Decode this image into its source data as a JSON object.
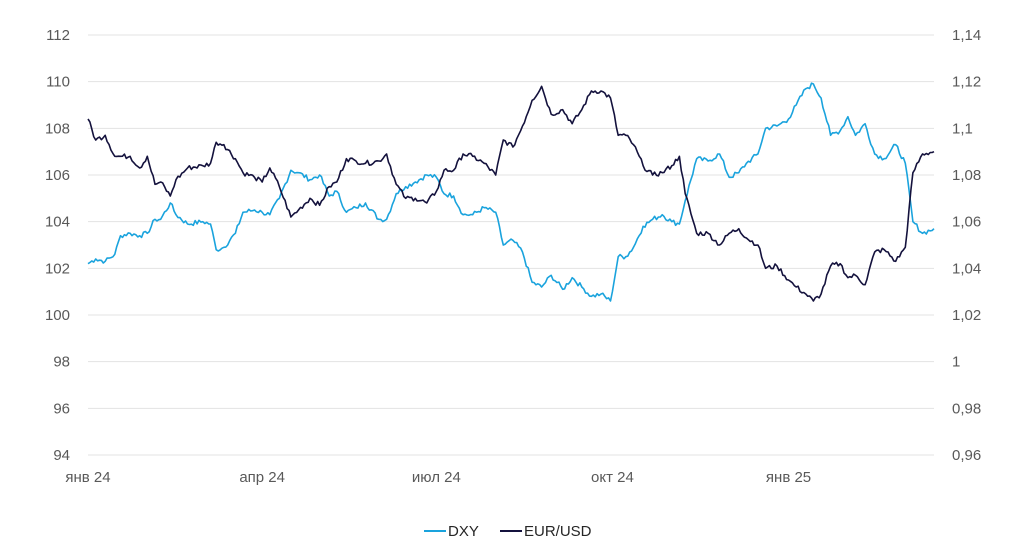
{
  "chart_data": {
    "type": "line",
    "x_tick_labels": [
      "янв 24",
      "апр 24",
      "июл 24",
      "окт 24",
      "янв 25"
    ],
    "x_tick_dates": [
      "2024-01-01",
      "2024-04-01",
      "2024-07-01",
      "2024-10-01",
      "2025-01-01"
    ],
    "x_range": [
      "2024-01-01",
      "2025-03-18"
    ],
    "y_left": {
      "ticks": [
        "112",
        "110",
        "108",
        "106",
        "104",
        "102",
        "100",
        "98",
        "96",
        "94"
      ],
      "range": [
        94,
        112
      ],
      "series": "DXY"
    },
    "y_right": {
      "ticks": [
        "1,14",
        "1,12",
        "1,1",
        "1,08",
        "1,06",
        "1,04",
        "1,02",
        "1",
        "0,98",
        "0,96"
      ],
      "range": [
        0.96,
        1.14
      ],
      "series": "EUR/USD"
    },
    "grid": "horizontal",
    "legend_position": "bottom",
    "series": [
      {
        "name": "DXY",
        "axis": "left",
        "color": "#1aa3dd",
        "points": [
          [
            "2024-01-01",
            102.2
          ],
          [
            "2024-01-05",
            102.4
          ],
          [
            "2024-01-10",
            102.3
          ],
          [
            "2024-01-15",
            102.6
          ],
          [
            "2024-01-18",
            103.4
          ],
          [
            "2024-01-23",
            103.5
          ],
          [
            "2024-01-28",
            103.4
          ],
          [
            "2024-02-01",
            103.5
          ],
          [
            "2024-02-05",
            104.1
          ],
          [
            "2024-02-08",
            104.1
          ],
          [
            "2024-02-13",
            104.8
          ],
          [
            "2024-02-16",
            104.3
          ],
          [
            "2024-02-22",
            103.9
          ],
          [
            "2024-03-01",
            104.0
          ],
          [
            "2024-03-05",
            103.9
          ],
          [
            "2024-03-08",
            102.8
          ],
          [
            "2024-03-12",
            102.9
          ],
          [
            "2024-03-18",
            103.5
          ],
          [
            "2024-03-22",
            104.4
          ],
          [
            "2024-03-28",
            104.5
          ],
          [
            "2024-04-01",
            104.4
          ],
          [
            "2024-04-05",
            104.3
          ],
          [
            "2024-04-10",
            105.0
          ],
          [
            "2024-04-16",
            106.2
          ],
          [
            "2024-04-20",
            106.1
          ],
          [
            "2024-04-26",
            105.8
          ],
          [
            "2024-05-01",
            106.0
          ],
          [
            "2024-05-06",
            105.1
          ],
          [
            "2024-05-10",
            105.3
          ],
          [
            "2024-05-15",
            104.4
          ],
          [
            "2024-05-20",
            104.6
          ],
          [
            "2024-05-25",
            104.8
          ],
          [
            "2024-06-01",
            104.1
          ],
          [
            "2024-06-05",
            104.1
          ],
          [
            "2024-06-10",
            105.2
          ],
          [
            "2024-06-15",
            105.5
          ],
          [
            "2024-06-20",
            105.7
          ],
          [
            "2024-06-26",
            106.0
          ],
          [
            "2024-07-01",
            105.9
          ],
          [
            "2024-07-05",
            105.2
          ],
          [
            "2024-07-10",
            105.1
          ],
          [
            "2024-07-15",
            104.3
          ],
          [
            "2024-07-20",
            104.3
          ],
          [
            "2024-07-26",
            104.6
          ],
          [
            "2024-08-01",
            104.4
          ],
          [
            "2024-08-05",
            103.0
          ],
          [
            "2024-08-10",
            103.2
          ],
          [
            "2024-08-15",
            102.7
          ],
          [
            "2024-08-20",
            101.4
          ],
          [
            "2024-08-25",
            101.2
          ],
          [
            "2024-08-30",
            101.7
          ],
          [
            "2024-09-05",
            101.1
          ],
          [
            "2024-09-10",
            101.6
          ],
          [
            "2024-09-15",
            101.2
          ],
          [
            "2024-09-20",
            100.8
          ],
          [
            "2024-09-25",
            100.9
          ],
          [
            "2024-09-30",
            100.6
          ],
          [
            "2024-10-04",
            102.5
          ],
          [
            "2024-10-08",
            102.5
          ],
          [
            "2024-10-12",
            102.9
          ],
          [
            "2024-10-17",
            103.8
          ],
          [
            "2024-10-22",
            104.1
          ],
          [
            "2024-10-27",
            104.3
          ],
          [
            "2024-11-01",
            104.0
          ],
          [
            "2024-11-05",
            103.9
          ],
          [
            "2024-11-08",
            104.9
          ],
          [
            "2024-11-14",
            106.7
          ],
          [
            "2024-11-20",
            106.6
          ],
          [
            "2024-11-26",
            106.9
          ],
          [
            "2024-12-01",
            105.9
          ],
          [
            "2024-12-06",
            106.1
          ],
          [
            "2024-12-10",
            106.5
          ],
          [
            "2024-12-16",
            106.9
          ],
          [
            "2024-12-20",
            108.0
          ],
          [
            "2024-12-26",
            108.1
          ],
          [
            "2025-01-01",
            108.4
          ],
          [
            "2025-01-05",
            109.0
          ],
          [
            "2025-01-10",
            109.7
          ],
          [
            "2025-01-14",
            109.9
          ],
          [
            "2025-01-18",
            109.3
          ],
          [
            "2025-01-23",
            107.7
          ],
          [
            "2025-01-28",
            107.9
          ],
          [
            "2025-02-01",
            108.5
          ],
          [
            "2025-02-05",
            107.7
          ],
          [
            "2025-02-10",
            108.2
          ],
          [
            "2025-02-15",
            106.9
          ],
          [
            "2025-02-20",
            106.7
          ],
          [
            "2025-02-26",
            107.3
          ],
          [
            "2025-03-03",
            106.5
          ],
          [
            "2025-03-07",
            104.0
          ],
          [
            "2025-03-12",
            103.5
          ],
          [
            "2025-03-18",
            103.7
          ]
        ]
      },
      {
        "name": "EUR/USD",
        "axis": "right",
        "color": "#14123d",
        "points": [
          [
            "2024-01-01",
            1.104
          ],
          [
            "2024-01-05",
            1.095
          ],
          [
            "2024-01-10",
            1.097
          ],
          [
            "2024-01-15",
            1.088
          ],
          [
            "2024-01-18",
            1.088
          ],
          [
            "2024-01-23",
            1.088
          ],
          [
            "2024-01-28",
            1.083
          ],
          [
            "2024-02-01",
            1.088
          ],
          [
            "2024-02-05",
            1.076
          ],
          [
            "2024-02-08",
            1.077
          ],
          [
            "2024-02-13",
            1.071
          ],
          [
            "2024-02-16",
            1.078
          ],
          [
            "2024-02-22",
            1.083
          ],
          [
            "2024-03-01",
            1.084
          ],
          [
            "2024-03-05",
            1.085
          ],
          [
            "2024-03-08",
            1.094
          ],
          [
            "2024-03-12",
            1.093
          ],
          [
            "2024-03-18",
            1.087
          ],
          [
            "2024-03-22",
            1.081
          ],
          [
            "2024-03-28",
            1.079
          ],
          [
            "2024-04-01",
            1.077
          ],
          [
            "2024-04-05",
            1.083
          ],
          [
            "2024-04-10",
            1.075
          ],
          [
            "2024-04-16",
            1.062
          ],
          [
            "2024-04-20",
            1.065
          ],
          [
            "2024-04-26",
            1.07
          ],
          [
            "2024-05-01",
            1.067
          ],
          [
            "2024-05-06",
            1.075
          ],
          [
            "2024-05-10",
            1.077
          ],
          [
            "2024-05-15",
            1.087
          ],
          [
            "2024-05-20",
            1.086
          ],
          [
            "2024-05-25",
            1.085
          ],
          [
            "2024-06-01",
            1.086
          ],
          [
            "2024-06-05",
            1.089
          ],
          [
            "2024-06-10",
            1.076
          ],
          [
            "2024-06-15",
            1.07
          ],
          [
            "2024-06-20",
            1.07
          ],
          [
            "2024-06-26",
            1.068
          ],
          [
            "2024-07-01",
            1.073
          ],
          [
            "2024-07-05",
            1.082
          ],
          [
            "2024-07-10",
            1.082
          ],
          [
            "2024-07-15",
            1.089
          ],
          [
            "2024-07-20",
            1.088
          ],
          [
            "2024-07-26",
            1.085
          ],
          [
            "2024-08-01",
            1.08
          ],
          [
            "2024-08-05",
            1.095
          ],
          [
            "2024-08-10",
            1.092
          ],
          [
            "2024-08-15",
            1.101
          ],
          [
            "2024-08-20",
            1.112
          ],
          [
            "2024-08-25",
            1.118
          ],
          [
            "2024-08-30",
            1.106
          ],
          [
            "2024-09-05",
            1.108
          ],
          [
            "2024-09-10",
            1.102
          ],
          [
            "2024-09-15",
            1.108
          ],
          [
            "2024-09-20",
            1.116
          ],
          [
            "2024-09-25",
            1.116
          ],
          [
            "2024-09-30",
            1.113
          ],
          [
            "2024-10-04",
            1.097
          ],
          [
            "2024-10-08",
            1.097
          ],
          [
            "2024-10-12",
            1.093
          ],
          [
            "2024-10-17",
            1.084
          ],
          [
            "2024-10-22",
            1.08
          ],
          [
            "2024-10-27",
            1.081
          ],
          [
            "2024-11-01",
            1.084
          ],
          [
            "2024-11-05",
            1.088
          ],
          [
            "2024-11-08",
            1.072
          ],
          [
            "2024-11-14",
            1.055
          ],
          [
            "2024-11-20",
            1.055
          ],
          [
            "2024-11-26",
            1.05
          ],
          [
            "2024-12-01",
            1.055
          ],
          [
            "2024-12-06",
            1.057
          ],
          [
            "2024-12-10",
            1.053
          ],
          [
            "2024-12-16",
            1.05
          ],
          [
            "2024-12-20",
            1.04
          ],
          [
            "2024-12-26",
            1.041
          ],
          [
            "2025-01-01",
            1.035
          ],
          [
            "2025-01-05",
            1.032
          ],
          [
            "2025-01-10",
            1.029
          ],
          [
            "2025-01-14",
            1.026
          ],
          [
            "2025-01-18",
            1.029
          ],
          [
            "2025-01-23",
            1.041
          ],
          [
            "2025-01-28",
            1.042
          ],
          [
            "2025-02-01",
            1.036
          ],
          [
            "2025-02-05",
            1.037
          ],
          [
            "2025-02-10",
            1.033
          ],
          [
            "2025-02-15",
            1.047
          ],
          [
            "2025-02-20",
            1.048
          ],
          [
            "2025-02-26",
            1.043
          ],
          [
            "2025-03-03",
            1.049
          ],
          [
            "2025-03-07",
            1.081
          ],
          [
            "2025-03-12",
            1.089
          ],
          [
            "2025-03-18",
            1.09
          ]
        ]
      }
    ]
  }
}
